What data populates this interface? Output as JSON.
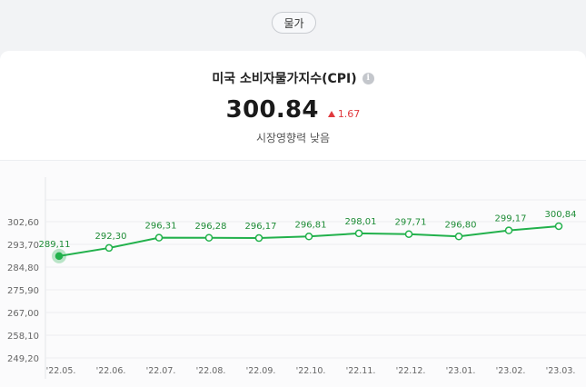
{
  "category_chip": "물가",
  "indicator": {
    "title": "미국 소비자물가지수(CPI)",
    "info_icon": "info-icon",
    "value": "300.84",
    "change": "1.67",
    "change_direction": "up",
    "impact": "시장영향력 낮음"
  },
  "colors": {
    "line": "#22b14c",
    "up": "#e0393e",
    "grid": "#eceef1"
  },
  "chart_data": {
    "type": "line",
    "categories": [
      "'22.05.",
      "'22.06.",
      "'22.07.",
      "'22.08.",
      "'22.09.",
      "'22.10.",
      "'22.11.",
      "'22.12.",
      "'23.01.",
      "'23.02.",
      "'23.03."
    ],
    "series": [
      {
        "values": [
          289.11,
          292.3,
          296.31,
          296.28,
          296.17,
          296.81,
          298.01,
          297.71,
          296.8,
          299.17,
          300.84
        ],
        "labels": [
          "289,11",
          "292,30",
          "296,31",
          "296,28",
          "296,17",
          "296,81",
          "298,01",
          "297,71",
          "296,80",
          "299,17",
          "300,84"
        ]
      }
    ],
    "yticks": [
      249.2,
      258.1,
      267.0,
      275.9,
      284.8,
      293.7,
      302.6
    ],
    "ytick_labels": [
      "249,20",
      "258,10",
      "267,00",
      "275,90",
      "284,80",
      "293,70",
      "302,60"
    ],
    "ylim": [
      249.2,
      311.5
    ],
    "grid": true,
    "highlighted_index": 0
  }
}
